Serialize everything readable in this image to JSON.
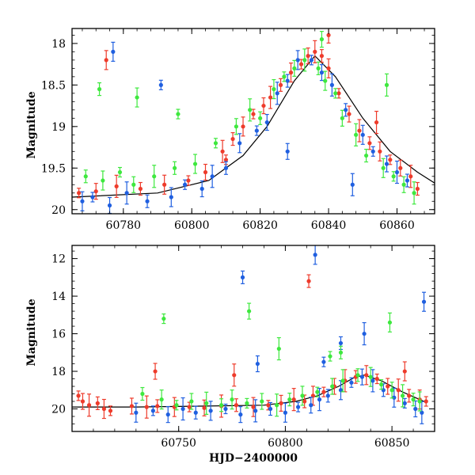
{
  "chart_data": [
    {
      "type": "scatter",
      "panel": "top",
      "title": "",
      "xlabel": "",
      "ylabel": "Magnitude",
      "xlim": [
        60765,
        60871
      ],
      "ylim": [
        20.05,
        17.82
      ],
      "y_inverted": true,
      "xticks": [
        60780,
        60800,
        60820,
        60840,
        60860
      ],
      "yticks": [
        18,
        18.5,
        19,
        19.5,
        20
      ],
      "ytick_labels": [
        "18",
        "18.5",
        "19",
        "19.5",
        "20"
      ],
      "grid": false,
      "legend": "none",
      "colors": {
        "series_a": "#ee3b2b",
        "series_b": "#1f5fe0",
        "series_c": "#3ee83e",
        "model": "#000000"
      },
      "model_line": {
        "x": [
          60765,
          60790,
          60805,
          60815,
          60822,
          60830,
          60836,
          60842,
          60850,
          60858,
          60866,
          60871
        ],
        "y": [
          19.85,
          19.8,
          19.65,
          19.35,
          19.0,
          18.45,
          18.15,
          18.4,
          18.9,
          19.3,
          19.55,
          19.68
        ]
      },
      "series": [
        {
          "color_key": "series_a",
          "x": [
            60767,
            60772,
            60778,
            60785,
            60792,
            60799,
            60804,
            60809,
            60812,
            60815,
            60818,
            60821,
            60823,
            60826,
            60829,
            60832,
            60834,
            60836,
            60838,
            60840,
            60843,
            60846,
            60849,
            60852,
            60855,
            60858,
            60861,
            60864,
            60866,
            60775,
            60810,
            60840,
            60854
          ],
          "y": [
            19.8,
            19.78,
            19.72,
            19.75,
            19.7,
            19.65,
            19.55,
            19.3,
            19.15,
            19.0,
            18.85,
            18.75,
            18.65,
            18.5,
            18.35,
            18.25,
            18.15,
            18.1,
            18.15,
            18.3,
            18.6,
            18.85,
            19.05,
            19.2,
            19.3,
            19.4,
            19.5,
            19.6,
            19.75,
            18.2,
            19.4,
            17.9,
            18.95
          ]
        },
        {
          "color_key": "series_b",
          "x": [
            60768,
            60771,
            60776,
            60781,
            60787,
            60794,
            60798,
            60803,
            60806,
            60810,
            60814,
            60819,
            60822,
            60825,
            60828,
            60831,
            60835,
            60838,
            60841,
            60845,
            60850,
            60853,
            60857,
            60860,
            60863,
            60777,
            60791,
            60828,
            60847
          ],
          "y": [
            19.9,
            19.85,
            19.95,
            19.8,
            19.9,
            19.85,
            19.7,
            19.75,
            19.6,
            19.5,
            19.2,
            19.05,
            18.95,
            18.6,
            18.45,
            18.2,
            18.2,
            18.35,
            18.5,
            18.8,
            19.1,
            19.3,
            19.45,
            19.55,
            19.65,
            18.1,
            18.5,
            19.3,
            19.7
          ]
        },
        {
          "color_key": "series_c",
          "x": [
            60769,
            60774,
            60779,
            60783,
            60789,
            60795,
            60801,
            60807,
            60813,
            60817,
            60820,
            60824,
            60827,
            60830,
            60833,
            60837,
            60839,
            60842,
            60844,
            60848,
            60851,
            60856,
            60859,
            60862,
            60865,
            60773,
            60784,
            60796,
            60838,
            60857
          ],
          "y": [
            19.6,
            19.65,
            19.55,
            19.7,
            19.6,
            19.5,
            19.45,
            19.2,
            19.0,
            18.8,
            18.9,
            18.55,
            18.4,
            18.3,
            18.2,
            18.3,
            18.45,
            18.6,
            18.9,
            19.1,
            19.35,
            19.5,
            19.6,
            19.7,
            19.8,
            18.55,
            18.65,
            18.85,
            17.95,
            18.5
          ]
        }
      ]
    },
    {
      "type": "scatter",
      "panel": "bottom",
      "title": "",
      "xlabel": "HJD−2400000",
      "ylabel": "Magnitude",
      "xlim": [
        60700,
        60870
      ],
      "ylim": [
        21.2,
        11.3
      ],
      "y_inverted": true,
      "xticks": [
        60750,
        60800,
        60850
      ],
      "yticks": [
        12,
        14,
        16,
        18,
        20
      ],
      "grid": false,
      "legend": "none",
      "model_line": {
        "x": [
          60700,
          60730,
          60760,
          60790,
          60805,
          60815,
          60825,
          60832,
          60837,
          60845,
          60855,
          60866
        ],
        "y": [
          19.9,
          19.9,
          19.85,
          19.8,
          19.6,
          19.3,
          18.8,
          18.35,
          18.2,
          18.5,
          19.1,
          19.65
        ]
      },
      "series": [
        {
          "color_key": "series_a",
          "x": [
            60703,
            60705,
            60708,
            60712,
            60715,
            60718,
            60728,
            60735,
            60740,
            60748,
            60755,
            60762,
            60770,
            60777,
            60785,
            60792,
            60798,
            60804,
            60809,
            60813,
            60818,
            60823,
            60828,
            60833,
            60838,
            60843,
            60848,
            60853,
            60858,
            60863,
            60866,
            60739,
            60776,
            60811,
            60856
          ],
          "y": [
            19.3,
            19.6,
            19.8,
            19.7,
            20.0,
            20.1,
            19.85,
            19.9,
            19.85,
            19.9,
            19.9,
            19.95,
            19.85,
            19.8,
            19.9,
            19.8,
            19.7,
            19.5,
            19.6,
            19.3,
            19.1,
            18.8,
            18.5,
            18.3,
            18.2,
            18.4,
            18.8,
            19.0,
            19.3,
            19.5,
            19.6,
            18.0,
            18.2,
            13.2,
            18.0
          ]
        },
        {
          "color_key": "series_b",
          "x": [
            60730,
            60738,
            60745,
            60752,
            60758,
            60765,
            60772,
            60779,
            60786,
            60793,
            60800,
            60806,
            60812,
            60816,
            60820,
            60826,
            60831,
            60836,
            60841,
            60846,
            60851,
            60856,
            60861,
            60864,
            60780,
            60814,
            60818,
            60787,
            60837,
            60826,
            60865
          ],
          "y": [
            20.2,
            20.1,
            20.3,
            20.0,
            20.2,
            20.1,
            20.0,
            20.3,
            20.1,
            20.0,
            20.2,
            19.9,
            19.8,
            19.5,
            19.3,
            19.0,
            18.6,
            18.3,
            18.5,
            19.0,
            19.4,
            19.7,
            20.0,
            20.2,
            13.0,
            11.8,
            17.5,
            17.6,
            16.0,
            16.5,
            14.3
          ]
        },
        {
          "color_key": "series_c",
          "x": [
            60733,
            60742,
            60749,
            60756,
            60763,
            60770,
            60775,
            60782,
            60789,
            60796,
            60802,
            60808,
            60815,
            60822,
            60827,
            60834,
            60840,
            60845,
            60850,
            60855,
            60860,
            60863,
            60743,
            60783,
            60797,
            60826,
            60849,
            60821
          ],
          "y": [
            19.2,
            19.5,
            19.8,
            19.6,
            19.7,
            19.8,
            19.5,
            19.7,
            19.6,
            19.8,
            19.5,
            19.3,
            19.1,
            18.8,
            18.5,
            18.2,
            18.3,
            18.7,
            19.0,
            19.3,
            19.5,
            19.6,
            15.2,
            14.8,
            16.8,
            17.0,
            15.4,
            17.2
          ]
        }
      ]
    }
  ]
}
